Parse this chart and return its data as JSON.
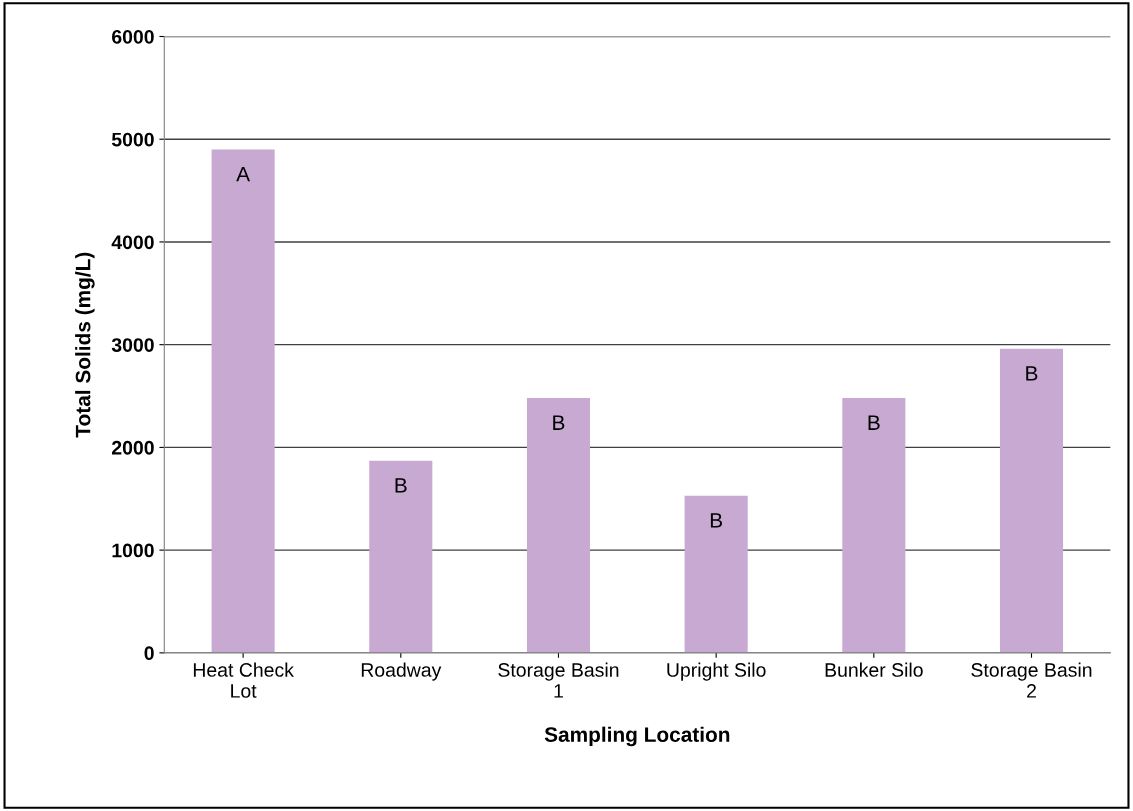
{
  "chart_data": {
    "type": "bar",
    "xlabel": "Sampling Location",
    "ylabel": "Total Solids (mg/L)",
    "categories": [
      "Heat Check\nLot",
      "Roadway",
      "Storage Basin\n1",
      "Upright Silo",
      "Bunker Silo",
      "Storage Basin\n2"
    ],
    "values": [
      4900,
      1870,
      2480,
      1530,
      2480,
      2960
    ],
    "color": "#c7a9d2",
    "ylim": [
      0,
      6000
    ],
    "yticks": [
      0,
      1000,
      2000,
      3000,
      4000,
      5000,
      6000
    ],
    "grid": "y",
    "value_labels": [
      "A",
      "B",
      "B",
      "B",
      "B",
      "B"
    ]
  }
}
